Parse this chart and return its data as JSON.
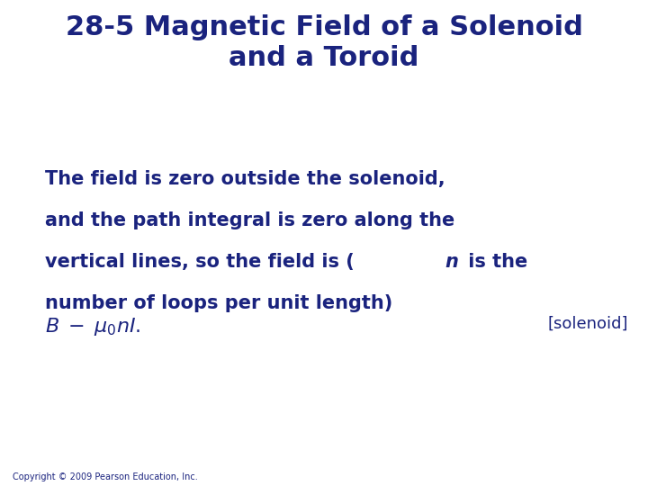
{
  "title_line1": "28-5 Magnetic Field of a Solenoid",
  "title_line2": "and a Toroid",
  "title_color": "#1a237e",
  "title_fontsize": 22,
  "body_text_line1": "The field is zero outside the solenoid,",
  "body_text_line2": "and the path integral is zero along the",
  "body_text_line3_pre": "vertical lines, so the field is (",
  "body_text_italic": "n",
  "body_text_line3_post": " is the",
  "body_text_line4": "number of loops per unit length)",
  "body_color": "#1a237e",
  "body_fontsize": 15,
  "formula_color": "#1a237e",
  "formula_fontsize": 16,
  "tag_text": "[solenoid]",
  "tag_fontsize": 13,
  "copyright_text": "Copyright © 2009 Pearson Education, Inc.",
  "copyright_fontsize": 7,
  "background_color": "#ffffff"
}
